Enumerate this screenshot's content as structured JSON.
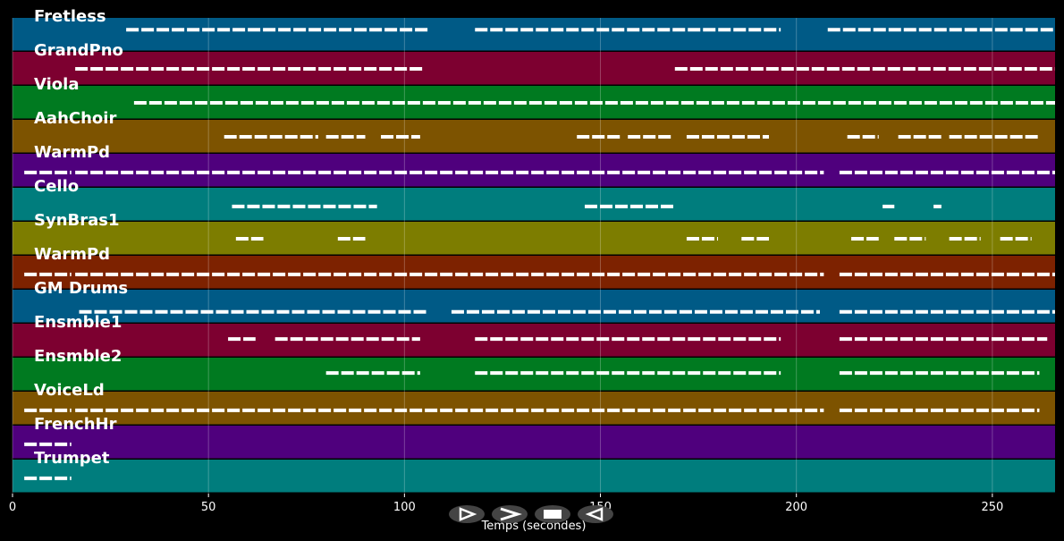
{
  "chart_data": {
    "type": "piano-roll",
    "xlabel": "Temps (secondes)",
    "xlim": [
      0,
      266
    ],
    "x_ticks": [
      0,
      50,
      100,
      150,
      200,
      250
    ],
    "grid": true,
    "tracks": [
      {
        "name": "Fretless",
        "color": "#005a86",
        "notes": [
          [
            29,
            106,
            0.35
          ],
          [
            118,
            196,
            0.35
          ],
          [
            208,
            266,
            0.35
          ]
        ]
      },
      {
        "name": "GrandPno",
        "color": "#7d0030",
        "notes": [
          [
            16,
            105,
            0.5
          ],
          [
            169,
            266,
            0.5
          ]
        ]
      },
      {
        "name": "Viola",
        "color": "#007a20",
        "notes": [
          [
            31,
            266,
            0.5
          ]
        ]
      },
      {
        "name": "AahChoir",
        "color": "#7d5300",
        "notes": [
          [
            54,
            78,
            0.5
          ],
          [
            80,
            90,
            0.5
          ],
          [
            94,
            104,
            0.5
          ],
          [
            144,
            155,
            0.5
          ],
          [
            157,
            168,
            0.5
          ],
          [
            172,
            193,
            0.5
          ],
          [
            213,
            221,
            0.5
          ],
          [
            226,
            237,
            0.5
          ],
          [
            239,
            262,
            0.5
          ]
        ]
      },
      {
        "name": "WarmPd",
        "color": "#4f007d",
        "notes": [
          [
            3,
            15,
            0.55
          ],
          [
            16,
            207,
            0.55
          ],
          [
            211,
            266,
            0.55
          ]
        ]
      },
      {
        "name": "Cello",
        "color": "#007d7d",
        "notes": [
          [
            56,
            93,
            0.55
          ],
          [
            146,
            169,
            0.55
          ],
          [
            222,
            225,
            0.55
          ],
          [
            235,
            237,
            0.55
          ]
        ]
      },
      {
        "name": "SynBras1",
        "color": "#7d7d00",
        "notes": [
          [
            57,
            64,
            0.5
          ],
          [
            83,
            90,
            0.5
          ],
          [
            172,
            180,
            0.5
          ],
          [
            186,
            193,
            0.5
          ],
          [
            214,
            221,
            0.5
          ],
          [
            225,
            233,
            0.5
          ],
          [
            239,
            247,
            0.5
          ],
          [
            252,
            260,
            0.5
          ]
        ]
      },
      {
        "name": "WarmPd",
        "color": "#7d2200",
        "notes": [
          [
            3,
            15,
            0.55
          ],
          [
            16,
            207,
            0.55
          ],
          [
            211,
            266,
            0.55
          ]
        ]
      },
      {
        "name": "GM Drums",
        "color": "#005a86",
        "notes": [
          [
            17,
            106,
            0.65
          ],
          [
            112,
            206,
            0.65
          ],
          [
            211,
            266,
            0.65
          ]
        ]
      },
      {
        "name": "Ensmble1",
        "color": "#7d0030",
        "notes": [
          [
            55,
            62,
            0.45
          ],
          [
            67,
            104,
            0.45
          ],
          [
            118,
            196,
            0.45
          ],
          [
            211,
            264,
            0.45
          ]
        ]
      },
      {
        "name": "Ensmble2",
        "color": "#007a20",
        "notes": [
          [
            80,
            104,
            0.45
          ],
          [
            118,
            196,
            0.45
          ],
          [
            211,
            262,
            0.45
          ]
        ]
      },
      {
        "name": "VoiceLd",
        "color": "#7d5300",
        "notes": [
          [
            3,
            15,
            0.55
          ],
          [
            16,
            207,
            0.55
          ],
          [
            211,
            262,
            0.55
          ]
        ]
      },
      {
        "name": "FrenchHr",
        "color": "#4f007d",
        "notes": [
          [
            3,
            15,
            0.55
          ]
        ]
      },
      {
        "name": "Trumpet",
        "color": "#007d7d",
        "notes": [
          [
            3,
            15,
            0.55
          ]
        ]
      }
    ]
  },
  "controls": [
    {
      "name": "play-button",
      "glyph": "play"
    },
    {
      "name": "fast-forward-button",
      "glyph": "fast-forward"
    },
    {
      "name": "stop-button",
      "glyph": "stop"
    },
    {
      "name": "rewind-button",
      "glyph": "rewind"
    }
  ]
}
